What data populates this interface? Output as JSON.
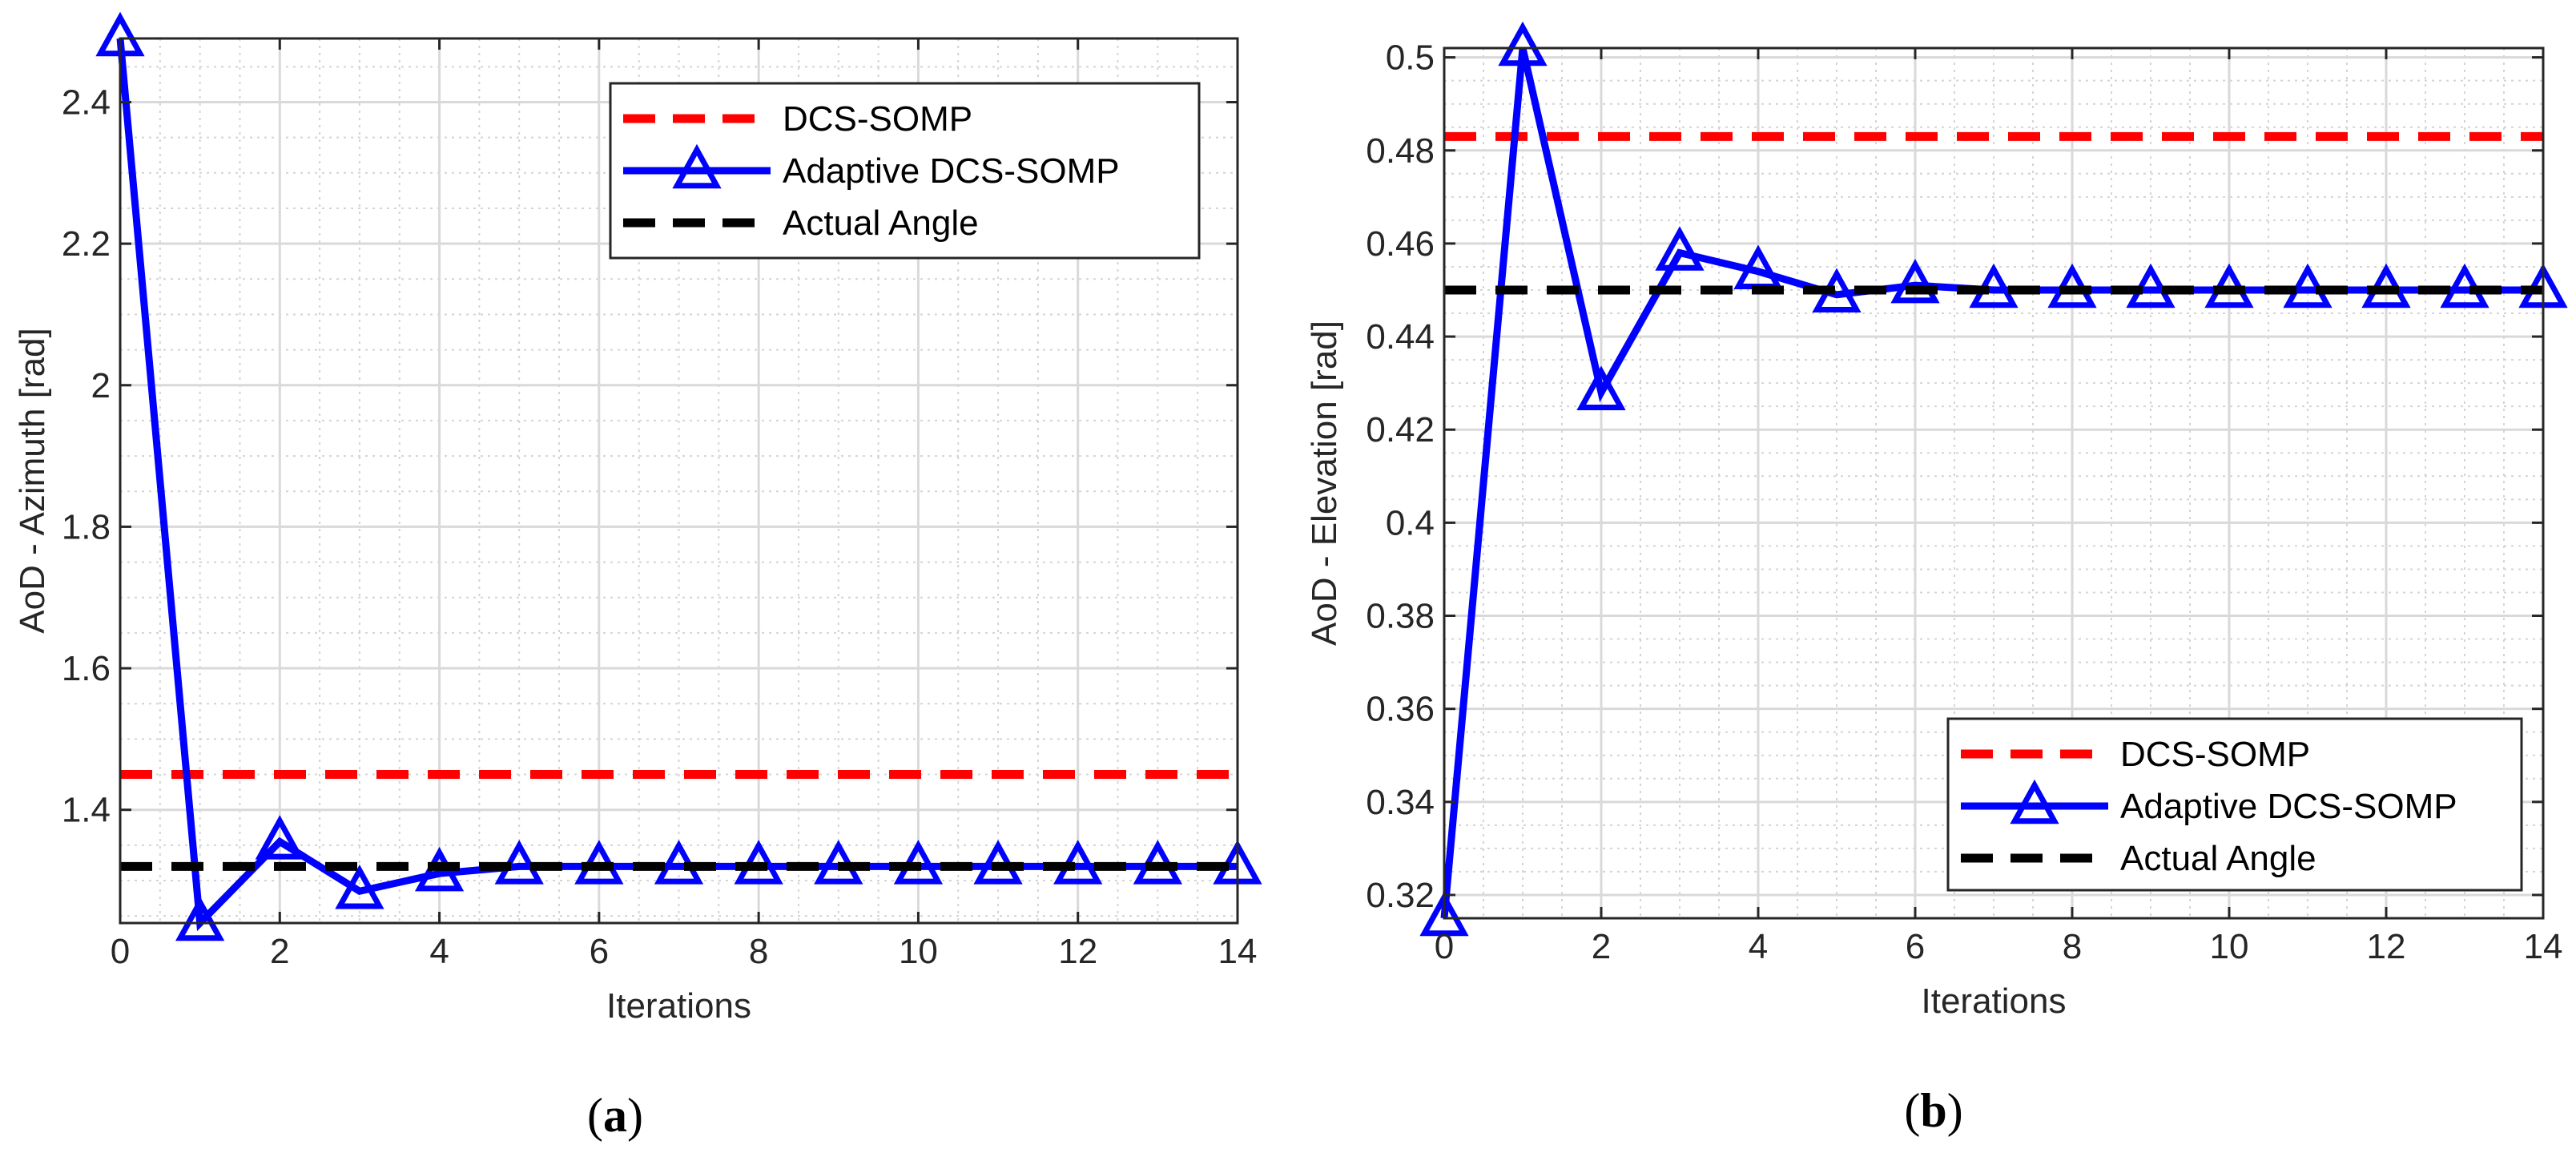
{
  "chart_data": [
    {
      "type": "line",
      "id": "a",
      "caption_open": "(",
      "caption_letter": "a",
      "caption_close": ")",
      "xlabel": "Iterations",
      "ylabel": "AoD - Azimuth [rad]",
      "xlim": [
        0,
        14
      ],
      "ylim": [
        1.24,
        2.49
      ],
      "xticks": [
        0,
        2,
        4,
        6,
        8,
        10,
        12,
        14
      ],
      "yticks": [
        1.4,
        1.6,
        1.8,
        2,
        2.2,
        2.4
      ],
      "ytick_labels": [
        "1.4",
        "1.6",
        "1.8",
        "2",
        "2.2",
        "2.4"
      ],
      "legend_position": "top-right",
      "series": [
        {
          "name": "DCS-SOMP",
          "style": "dashed",
          "color": "#ff0000",
          "x": [
            0,
            14
          ],
          "y": [
            1.45,
            1.45
          ]
        },
        {
          "name": "Adaptive DCS-SOMP",
          "style": "solid-triangle",
          "color": "#0000ff",
          "x": [
            0,
            1,
            2,
            3,
            4,
            5,
            6,
            7,
            8,
            9,
            10,
            11,
            12,
            13,
            14
          ],
          "y": [
            2.49,
            1.24,
            1.355,
            1.285,
            1.31,
            1.32,
            1.32,
            1.32,
            1.32,
            1.32,
            1.32,
            1.32,
            1.32,
            1.32,
            1.32
          ]
        },
        {
          "name": "Actual Angle",
          "style": "dashed",
          "color": "#000000",
          "x": [
            0,
            14
          ],
          "y": [
            1.32,
            1.32
          ]
        }
      ]
    },
    {
      "type": "line",
      "id": "b",
      "caption_open": "(",
      "caption_letter": "b",
      "caption_close": ")",
      "xlabel": "Iterations",
      "ylabel": "AoD - Elevation [rad]",
      "xlim": [
        0,
        14
      ],
      "ylim": [
        0.315,
        0.502
      ],
      "xticks": [
        0,
        2,
        4,
        6,
        8,
        10,
        12,
        14
      ],
      "yticks": [
        0.32,
        0.34,
        0.36,
        0.38,
        0.4,
        0.42,
        0.44,
        0.46,
        0.48,
        0.5
      ],
      "ytick_labels": [
        "0.32",
        "0.34",
        "0.36",
        "0.38",
        "0.4",
        "0.42",
        "0.44",
        "0.46",
        "0.48",
        "0.5"
      ],
      "legend_position": "bottom-right",
      "series": [
        {
          "name": "DCS-SOMP",
          "style": "dashed",
          "color": "#ff0000",
          "x": [
            0,
            14
          ],
          "y": [
            0.483,
            0.483
          ]
        },
        {
          "name": "Adaptive DCS-SOMP",
          "style": "solid-triangle",
          "color": "#0000ff",
          "x": [
            0,
            1,
            2,
            3,
            4,
            5,
            6,
            7,
            8,
            9,
            10,
            11,
            12,
            13,
            14
          ],
          "y": [
            0.315,
            0.502,
            0.428,
            0.458,
            0.454,
            0.449,
            0.451,
            0.45,
            0.45,
            0.45,
            0.45,
            0.45,
            0.45,
            0.45,
            0.45
          ]
        },
        {
          "name": "Actual Angle",
          "style": "dashed",
          "color": "#000000",
          "x": [
            0,
            14
          ],
          "y": [
            0.45,
            0.45
          ]
        }
      ]
    }
  ]
}
